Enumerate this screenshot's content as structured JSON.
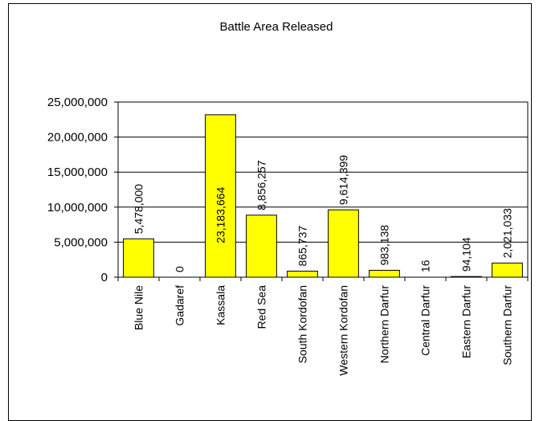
{
  "chart_data": {
    "type": "bar",
    "title": "Battle Area Released",
    "xlabel": "",
    "ylabel": "",
    "ylim": [
      0,
      25000000
    ],
    "yticks": [
      0,
      5000000,
      10000000,
      15000000,
      20000000,
      25000000
    ],
    "ytick_labels": [
      "0",
      "5,000,000",
      "10,000,000",
      "15,000,000",
      "20,000,000",
      "25,000,000"
    ],
    "grid": true,
    "legend": "none",
    "bar_color": "#ffff00",
    "categories": [
      "Blue Nile",
      "Gadaref",
      "Kassala",
      "Red Sea",
      "South Kordofan",
      "Western Kordofan",
      "Northern Darfur",
      "Central Darfur",
      "Eastern Darfur",
      "Southern Darfur"
    ],
    "values": [
      5478000,
      0,
      23183664,
      8856257,
      865737,
      9614399,
      983138,
      16,
      94104,
      2021033
    ],
    "data_labels": [
      "5,478,000",
      "0",
      "23,183,664",
      "8,856,257",
      "865,737",
      "9,614,399",
      "983,138",
      "16",
      "94,104",
      "2,021,033"
    ]
  }
}
